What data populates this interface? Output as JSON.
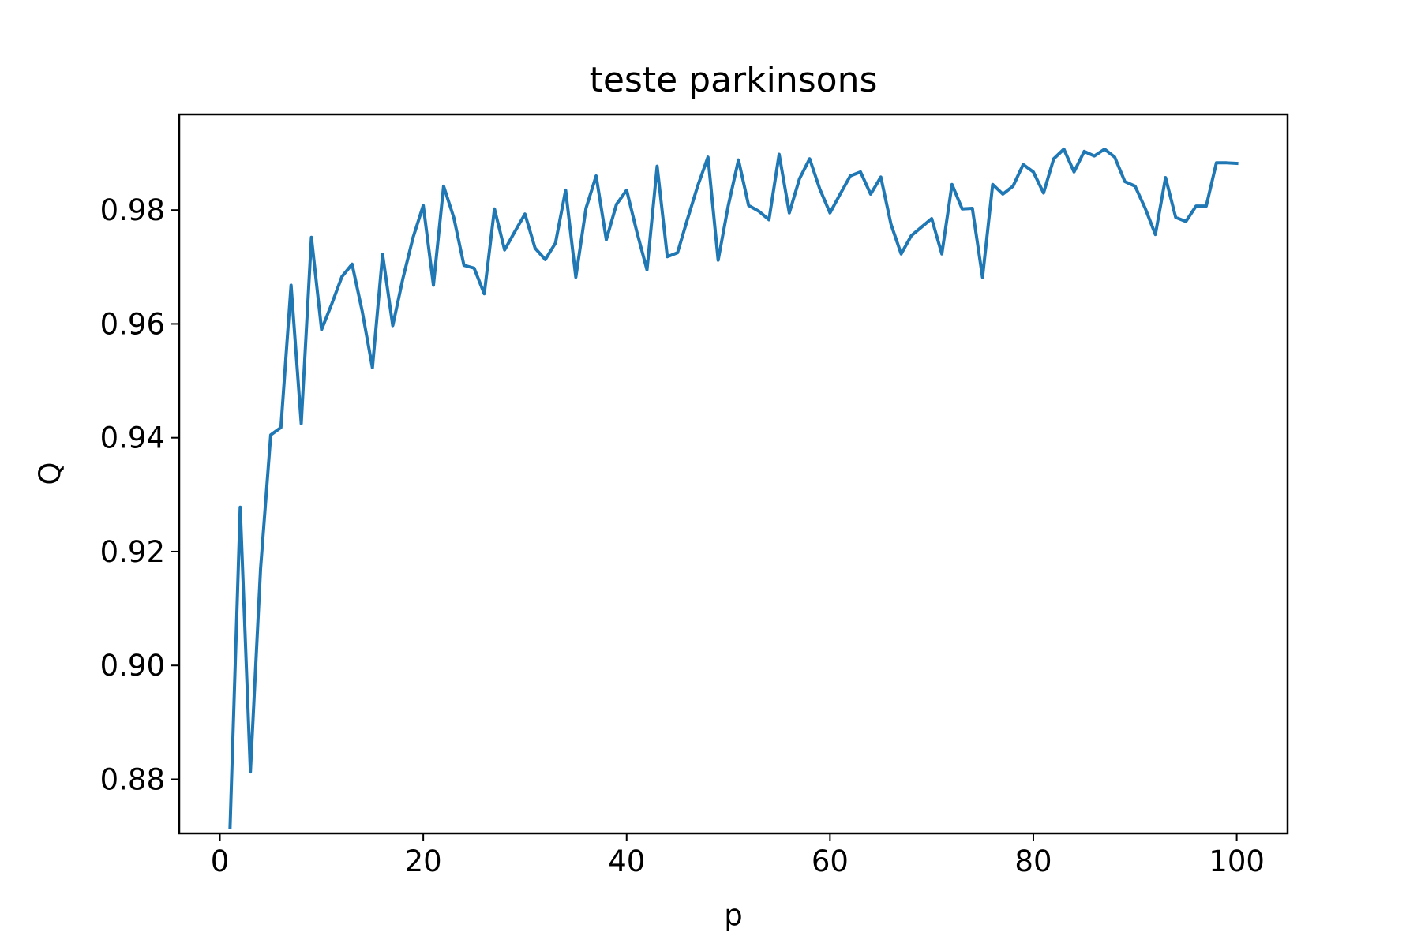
{
  "chart_data": {
    "type": "line",
    "title": "teste parkinsons",
    "xlabel": "p",
    "ylabel": "Q",
    "xlim": [
      -4,
      105
    ],
    "ylim": [
      0.8705,
      0.9968
    ],
    "xticks": [
      0,
      20,
      40,
      60,
      80,
      100
    ],
    "xtick_labels": [
      "0",
      "20",
      "40",
      "60",
      "80",
      "100"
    ],
    "yticks": [
      0.88,
      0.9,
      0.92,
      0.94,
      0.96,
      0.98
    ],
    "ytick_labels": [
      "0.88",
      "0.90",
      "0.92",
      "0.94",
      "0.96",
      "0.98"
    ],
    "grid": false,
    "line_color": "#1f77b4",
    "series": [
      {
        "x": [
          1,
          2,
          3,
          4,
          5,
          6,
          7,
          8,
          9,
          10,
          11,
          12,
          13,
          14,
          15,
          16,
          17,
          18,
          19,
          20,
          21,
          22,
          23,
          24,
          25,
          26,
          27,
          28,
          29,
          30,
          31,
          32,
          33,
          34,
          35,
          36,
          37,
          38,
          39,
          40,
          41,
          42,
          43,
          44,
          45,
          46,
          47,
          48,
          49,
          50,
          51,
          52,
          53,
          54,
          55,
          56,
          57,
          58,
          59,
          60,
          61,
          62,
          63,
          64,
          65,
          66,
          67,
          68,
          69,
          70,
          71,
          72,
          73,
          74,
          75,
          76,
          77,
          78,
          79,
          80,
          81,
          82,
          83,
          84,
          85,
          86,
          87,
          88,
          89,
          90,
          91,
          92,
          93,
          94,
          95,
          96,
          97,
          98,
          99,
          100
        ],
        "y": [
          0.8715,
          0.9278,
          0.8813,
          0.917,
          0.9405,
          0.9418,
          0.9668,
          0.9425,
          0.9752,
          0.959,
          0.9635,
          0.9683,
          0.9705,
          0.9622,
          0.9523,
          0.9722,
          0.9597,
          0.968,
          0.9752,
          0.9808,
          0.9668,
          0.9842,
          0.9787,
          0.9703,
          0.9698,
          0.9653,
          0.9802,
          0.973,
          0.9762,
          0.9793,
          0.9733,
          0.9713,
          0.9742,
          0.9835,
          0.9682,
          0.9803,
          0.986,
          0.9748,
          0.981,
          0.9835,
          0.9762,
          0.9695,
          0.9877,
          0.9718,
          0.9725,
          0.9785,
          0.9843,
          0.9893,
          0.9712,
          0.9808,
          0.9888,
          0.9808,
          0.9798,
          0.9783,
          0.9898,
          0.9795,
          0.9855,
          0.989,
          0.9837,
          0.9795,
          0.9828,
          0.986,
          0.9867,
          0.9828,
          0.9858,
          0.9775,
          0.9723,
          0.9755,
          0.977,
          0.9785,
          0.9723,
          0.9845,
          0.9802,
          0.9803,
          0.9682,
          0.9845,
          0.9828,
          0.9842,
          0.988,
          0.9867,
          0.983,
          0.989,
          0.9907,
          0.9867,
          0.9903,
          0.9895,
          0.9907,
          0.9893,
          0.985,
          0.9842,
          0.9803,
          0.9757,
          0.9857,
          0.9787,
          0.978,
          0.9807,
          0.9807,
          0.9883,
          0.9883,
          0.9882
        ]
      }
    ]
  }
}
